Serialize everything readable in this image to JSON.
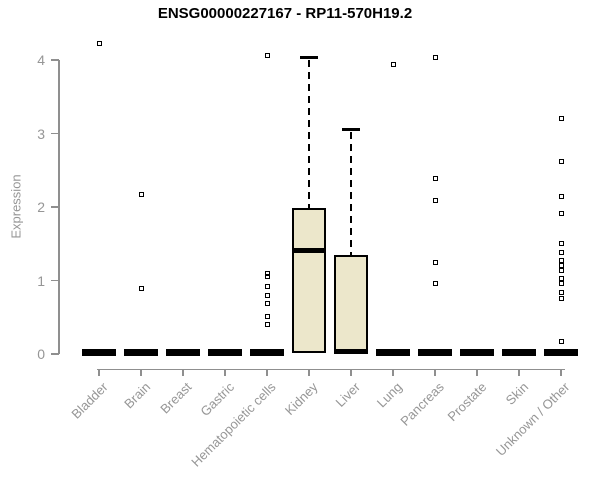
{
  "chart_data": {
    "type": "boxplot",
    "title": "ENSG00000227167 - RP11-570H19.2",
    "xlabel": "",
    "ylabel": "Expression",
    "ylim": [
      0,
      4
    ],
    "yticks": [
      0,
      1,
      2,
      3,
      4
    ],
    "grid": "off",
    "legend": "none",
    "marker": "open-square",
    "categories": [
      "Bladder",
      "Brain",
      "Breast",
      "Gastric",
      "Hematopoietic cells",
      "Kidney",
      "Liver",
      "Lung",
      "Pancreas",
      "Prostate",
      "Skin",
      "Unknown / Other"
    ],
    "series": [
      {
        "category": "Bladder",
        "flat": true,
        "q1": 0,
        "median": 0,
        "q3": 0,
        "whisker_low": 0,
        "whisker_high": 0,
        "outliers": [
          4.23
        ]
      },
      {
        "category": "Brain",
        "flat": true,
        "q1": 0,
        "median": 0,
        "q3": 0,
        "whisker_low": 0,
        "whisker_high": 0,
        "outliers": [
          2.17,
          0.89
        ]
      },
      {
        "category": "Breast",
        "flat": true,
        "q1": 0,
        "median": 0,
        "q3": 0,
        "whisker_low": 0,
        "whisker_high": 0,
        "outliers": []
      },
      {
        "category": "Gastric",
        "flat": true,
        "q1": 0,
        "median": 0,
        "q3": 0,
        "whisker_low": 0,
        "whisker_high": 0,
        "outliers": []
      },
      {
        "category": "Hematopoietic cells",
        "flat": true,
        "q1": 0,
        "median": 0,
        "q3": 0,
        "whisker_low": 0,
        "whisker_high": 0,
        "outliers": [
          4.06,
          1.1,
          1.05,
          0.92,
          0.8,
          0.69,
          0.51,
          0.4
        ]
      },
      {
        "category": "Kidney",
        "flat": false,
        "q1": 0.02,
        "median": 1.43,
        "q3": 1.98,
        "whisker_low": 0,
        "whisker_high": 4.04,
        "outliers": []
      },
      {
        "category": "Liver",
        "flat": false,
        "q1": 0,
        "median": 0.03,
        "q3": 1.35,
        "whisker_low": 0,
        "whisker_high": 3.06,
        "outliers": []
      },
      {
        "category": "Lung",
        "flat": true,
        "q1": 0,
        "median": 0,
        "q3": 0,
        "whisker_low": 0,
        "whisker_high": 0,
        "outliers": [
          3.94
        ]
      },
      {
        "category": "Pancreas",
        "flat": true,
        "q1": 0,
        "median": 0,
        "q3": 0,
        "whisker_low": 0,
        "whisker_high": 0,
        "outliers": [
          4.03,
          2.39,
          2.09,
          1.25,
          0.96
        ]
      },
      {
        "category": "Prostate",
        "flat": true,
        "q1": 0,
        "median": 0,
        "q3": 0,
        "whisker_low": 0,
        "whisker_high": 0,
        "outliers": []
      },
      {
        "category": "Skin",
        "flat": true,
        "q1": 0,
        "median": 0,
        "q3": 0,
        "whisker_low": 0,
        "whisker_high": 0,
        "outliers": []
      },
      {
        "category": "Unknown / Other",
        "flat": true,
        "q1": 0,
        "median": 0,
        "q3": 0,
        "whisker_low": 0,
        "whisker_high": 0,
        "outliers": [
          3.2,
          2.62,
          2.14,
          1.91,
          1.51,
          1.38,
          1.27,
          1.2,
          1.13,
          1.03,
          0.96,
          0.83,
          0.76,
          0.17
        ]
      }
    ],
    "colors": {
      "box_fill": "#ECE7CB",
      "box_border": "#000000",
      "median": "#000000",
      "outlier": "#000000",
      "axis": "#8F8F8F",
      "tick_label": "#969696",
      "title": "#000000",
      "background": "#FFFFFF"
    }
  }
}
